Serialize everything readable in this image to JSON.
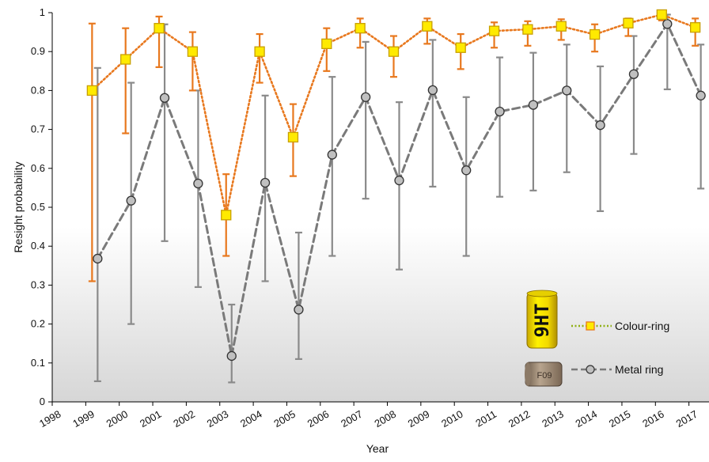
{
  "chart_data": {
    "type": "line",
    "xlabel": "Year",
    "ylabel": "Resight probability",
    "xlim": [
      1998,
      2017
    ],
    "ylim": [
      0,
      1
    ],
    "x_ticks": [
      "1998",
      "1999",
      "2000",
      "2001",
      "2002",
      "2003",
      "2004",
      "2005",
      "2006",
      "2007",
      "2008",
      "2009",
      "2010",
      "2011",
      "2012",
      "2013",
      "2014",
      "2015",
      "2016",
      "2017"
    ],
    "y_ticks": [
      "0",
      "0.1",
      "0.2",
      "0.3",
      "0.4",
      "0.5",
      "0.6",
      "0.7",
      "0.8",
      "0.9",
      "1"
    ],
    "grid": false,
    "legend_position": "bottom-right",
    "ring_label_text": "9HT",
    "metal_ring_label_text": "F09",
    "series": [
      {
        "name": "Colour-ring",
        "line_color": "#e8781e",
        "marker": "square",
        "marker_fill": "#ffea00",
        "marker_stroke": "#c8a000",
        "line_style": "dotted",
        "x": [
          1999,
          2000,
          2001,
          2002,
          2003,
          2004,
          2005,
          2006,
          2007,
          2008,
          2009,
          2010,
          2011,
          2012,
          2013,
          2014,
          2015,
          2016,
          2017
        ],
        "values": [
          0.8,
          0.88,
          0.96,
          0.9,
          0.48,
          0.9,
          0.68,
          0.92,
          0.96,
          0.9,
          0.965,
          0.91,
          0.953,
          0.957,
          0.965,
          0.944,
          0.973,
          0.995,
          0.962
        ],
        "lower": [
          0.31,
          0.69,
          0.86,
          0.8,
          0.375,
          0.82,
          0.58,
          0.85,
          0.91,
          0.835,
          0.92,
          0.855,
          0.91,
          0.915,
          0.93,
          0.9,
          0.94,
          0.98,
          0.915
        ],
        "upper": [
          0.972,
          0.96,
          0.99,
          0.95,
          0.585,
          0.945,
          0.765,
          0.96,
          0.985,
          0.94,
          0.985,
          0.945,
          0.975,
          0.978,
          0.983,
          0.97,
          0.985,
          1.0,
          0.985
        ]
      },
      {
        "name": "Metal ring",
        "line_color": "#808080",
        "marker": "circle",
        "marker_fill": "#c0c0c0",
        "marker_stroke": "#333333",
        "line_style": "dashed",
        "x": [
          1999,
          2000,
          2001,
          2002,
          2003,
          2004,
          2005,
          2006,
          2007,
          2008,
          2009,
          2010,
          2011,
          2012,
          2013,
          2014,
          2015,
          2016,
          2017
        ],
        "values": [
          0.368,
          0.517,
          0.781,
          0.561,
          0.118,
          0.563,
          0.237,
          0.635,
          0.783,
          0.569,
          0.801,
          0.595,
          0.746,
          0.763,
          0.8,
          0.711,
          0.842,
          0.971,
          0.787
        ],
        "lower": [
          0.053,
          0.2,
          0.413,
          0.295,
          0.05,
          0.31,
          0.11,
          0.375,
          0.522,
          0.34,
          0.553,
          0.375,
          0.527,
          0.543,
          0.59,
          0.49,
          0.637,
          0.803,
          0.548
        ],
        "upper": [
          0.858,
          0.82,
          0.97,
          0.8,
          0.25,
          0.787,
          0.435,
          0.835,
          0.925,
          0.77,
          0.93,
          0.783,
          0.885,
          0.897,
          0.918,
          0.862,
          0.94,
          0.995,
          0.918
        ]
      }
    ]
  }
}
